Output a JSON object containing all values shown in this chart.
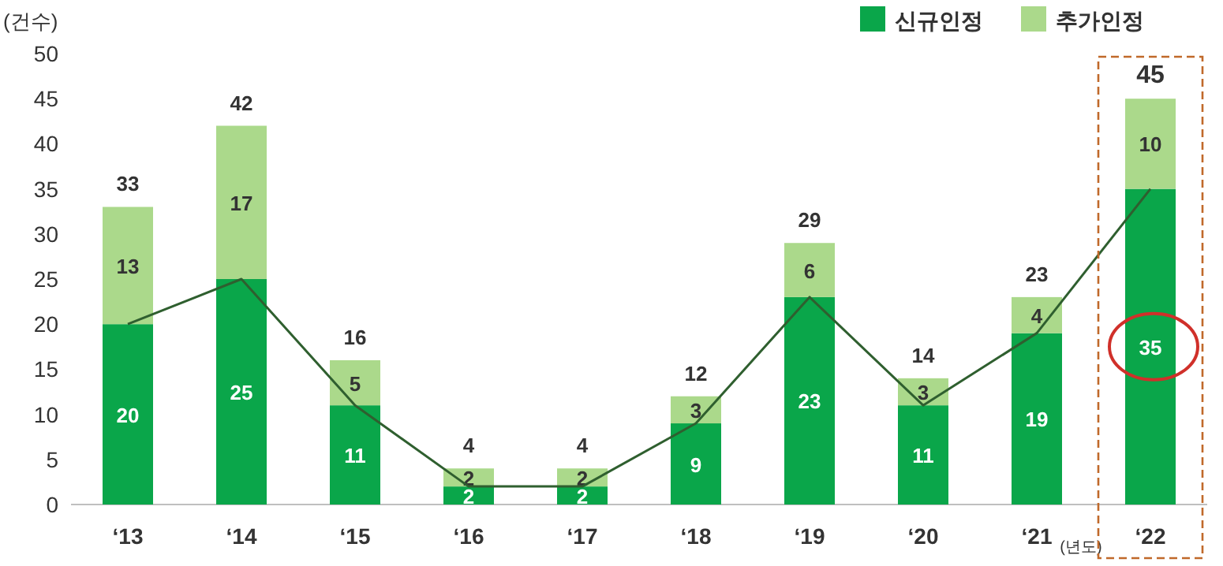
{
  "chart_data": {
    "type": "bar",
    "stacked": true,
    "ylabel": "(건수)",
    "xlabel": "(년도)",
    "categories": [
      "‘13",
      "‘14",
      "‘15",
      "‘16",
      "‘17",
      "‘18",
      "‘19",
      "‘20",
      "‘21",
      "‘22"
    ],
    "series": [
      {
        "name": "신규인정",
        "color": "#0aa64a",
        "values": [
          20,
          25,
          11,
          2,
          2,
          9,
          23,
          11,
          19,
          35
        ],
        "value_labels": [
          "20",
          "25",
          "11",
          "2",
          "2",
          "9",
          "23",
          "11",
          "19",
          "35"
        ]
      },
      {
        "name": "추가인정",
        "color": "#abd98b",
        "values": [
          13,
          17,
          5,
          2,
          2,
          3,
          6,
          3,
          4,
          10
        ],
        "value_labels": [
          "13",
          "17",
          "5",
          "2",
          "2",
          "3",
          "6",
          "3",
          "4",
          "10"
        ]
      },
      {
        "type": "line",
        "color": "#2f5f2f",
        "values": [
          20,
          25,
          11,
          2,
          2,
          9,
          23,
          11,
          19,
          35
        ]
      }
    ],
    "totals": [
      "33",
      "42",
      "16",
      "4",
      "4",
      "12",
      "29",
      "14",
      "23",
      "45"
    ],
    "ylim": [
      0,
      50
    ],
    "yticks": [
      0,
      5,
      10,
      15,
      20,
      25,
      30,
      35,
      40,
      45,
      50
    ],
    "grid": false,
    "legend": "top right",
    "marker": "none",
    "line_style": "solid"
  }
}
